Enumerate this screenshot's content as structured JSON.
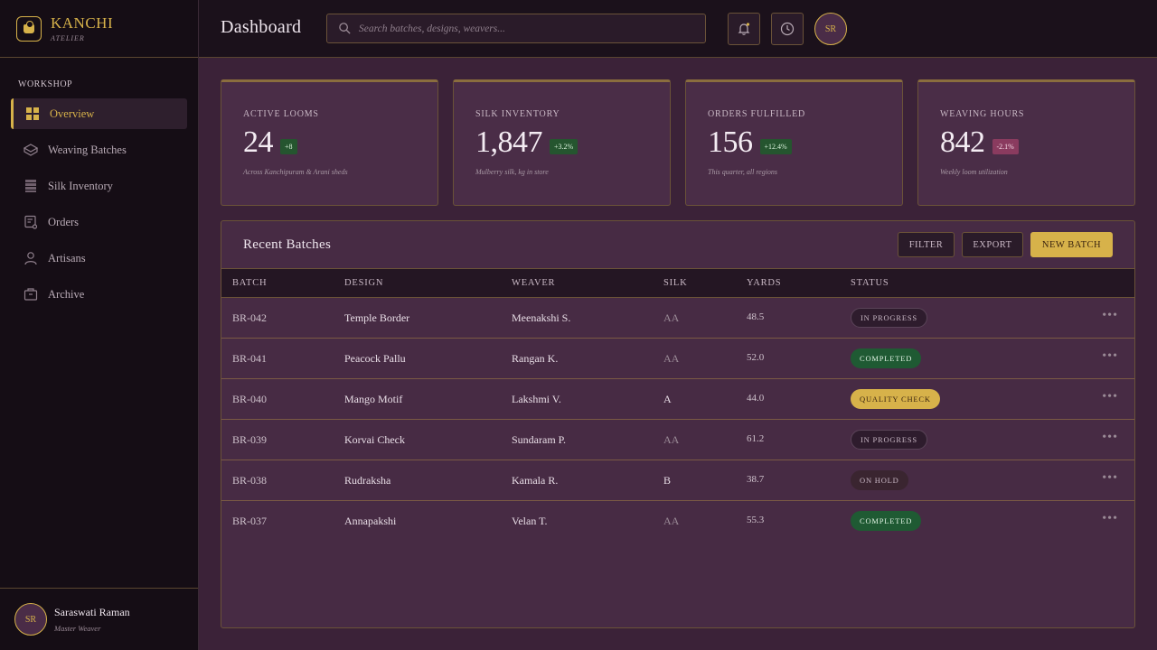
{
  "brand": {
    "name": "KANCHI",
    "sub": "ATELIER"
  },
  "sidebar": {
    "section": "WORKSHOP",
    "items": [
      {
        "label": "Overview",
        "icon": "grid-icon",
        "active": true
      },
      {
        "label": "Weaving Batches",
        "icon": "layers-icon"
      },
      {
        "label": "Silk Inventory",
        "icon": "stack-icon"
      },
      {
        "label": "Orders",
        "icon": "order-icon"
      },
      {
        "label": "Artisans",
        "icon": "user-icon"
      },
      {
        "label": "Archive",
        "icon": "archive-icon"
      }
    ],
    "user": {
      "initials": "SR",
      "name": "Saraswati Raman",
      "role": "Master Weaver"
    }
  },
  "header": {
    "title": "Dashboard",
    "search_placeholder": "Search batches, designs, weavers...",
    "avatar_initials": "SR"
  },
  "stats": [
    {
      "label": "ACTIVE LOOMS",
      "value": "24",
      "delta": "+8",
      "trend": "pos",
      "note": "Across Kanchipuram & Arani sheds"
    },
    {
      "label": "SILK INVENTORY",
      "value": "1,847",
      "delta": "+3.2%",
      "trend": "pos",
      "note": "Mulberry silk, kg in store"
    },
    {
      "label": "ORDERS FULFILLED",
      "value": "156",
      "delta": "+12.4%",
      "trend": "pos",
      "note": "This quarter, all regions"
    },
    {
      "label": "WEAVING HOURS",
      "value": "842",
      "delta": "-2.1%",
      "trend": "neg",
      "note": "Weekly loom utilization"
    }
  ],
  "batches": {
    "title": "Recent Batches",
    "filter_label": "FILTER",
    "export_label": "EXPORT",
    "new_label": "NEW BATCH",
    "columns": [
      "BATCH",
      "DESIGN",
      "WEAVER",
      "SILK",
      "YARDS",
      "STATUS"
    ],
    "rows": [
      {
        "batch": "BR-042",
        "design": "Temple Border",
        "weaver": "Meenakshi S.",
        "silk": "AA",
        "yards": "48.5",
        "status": "IN PROGRESS",
        "kind": "progress"
      },
      {
        "batch": "BR-041",
        "design": "Peacock Pallu",
        "weaver": "Rangan K.",
        "silk": "AA",
        "yards": "52.0",
        "status": "COMPLETED",
        "kind": "completed"
      },
      {
        "batch": "BR-040",
        "design": "Mango Motif",
        "weaver": "Lakshmi V.",
        "silk": "A",
        "yards": "44.0",
        "status": "QUALITY CHECK",
        "kind": "quality"
      },
      {
        "batch": "BR-039",
        "design": "Korvai Check",
        "weaver": "Sundaram P.",
        "silk": "AA",
        "yards": "61.2",
        "status": "IN PROGRESS",
        "kind": "progress"
      },
      {
        "batch": "BR-038",
        "design": "Rudraksha",
        "weaver": "Kamala R.",
        "silk": "B",
        "yards": "38.7",
        "status": "ON HOLD",
        "kind": "hold"
      },
      {
        "batch": "BR-037",
        "design": "Annapakshi",
        "weaver": "Velan T.",
        "silk": "AA",
        "yards": "55.3",
        "status": "COMPLETED",
        "kind": "completed"
      }
    ]
  }
}
